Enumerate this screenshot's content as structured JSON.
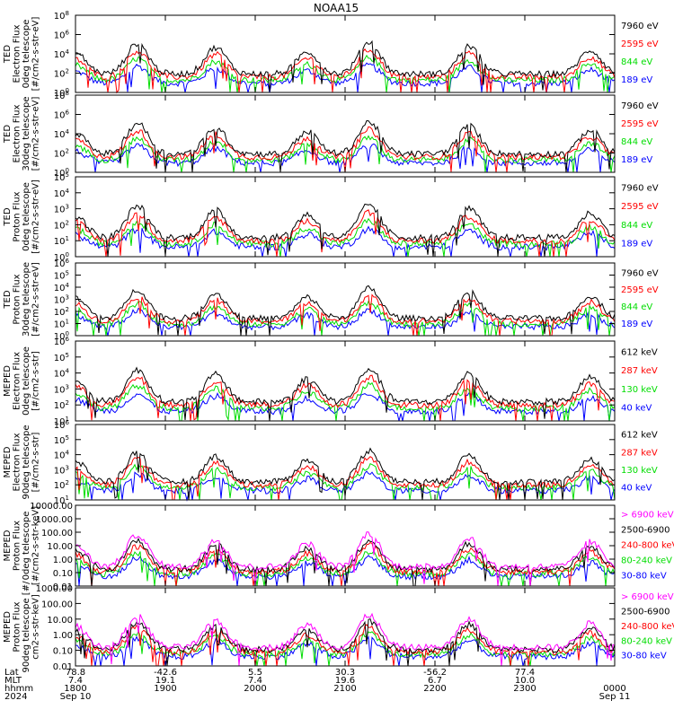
{
  "figure": {
    "title": "NOAA15"
  },
  "chart_data": [
    {
      "type": "line",
      "ylabel": [
        "TED",
        "Electron Flux",
        "0deg telescope",
        "[#/cm2-s-str-eV]"
      ],
      "yscale": "log",
      "ylim_exp": [
        0,
        8
      ],
      "yticks": [
        {
          "label": "10",
          "exp": "0",
          "e": 0
        },
        {
          "label": "10",
          "exp": "2",
          "e": 2
        },
        {
          "label": "10",
          "exp": "4",
          "e": 4
        },
        {
          "label": "10",
          "exp": "6",
          "e": 6
        },
        {
          "label": "10",
          "exp": "8",
          "e": 8
        }
      ],
      "series": [
        {
          "name": "7960 eV",
          "color": "#000000"
        },
        {
          "name": "2595 eV",
          "color": "#ff0000"
        },
        {
          "name": "844 eV",
          "color": "#00dd00"
        },
        {
          "name": "189 eV",
          "color": "#0000ff"
        }
      ]
    },
    {
      "type": "line",
      "ylabel": [
        "TED",
        "Electron Flux",
        "30deg telescope",
        "[#/cm2-s-str-eV]"
      ],
      "yscale": "log",
      "ylim_exp": [
        0,
        8
      ],
      "yticks": [
        {
          "label": "10",
          "exp": "0",
          "e": 0
        },
        {
          "label": "10",
          "exp": "2",
          "e": 2
        },
        {
          "label": "10",
          "exp": "4",
          "e": 4
        },
        {
          "label": "10",
          "exp": "6",
          "e": 6
        },
        {
          "label": "10",
          "exp": "8",
          "e": 8
        }
      ],
      "series": [
        {
          "name": "7960 eV",
          "color": "#000000"
        },
        {
          "name": "2595 eV",
          "color": "#ff0000"
        },
        {
          "name": "844 eV",
          "color": "#00dd00"
        },
        {
          "name": "189 eV",
          "color": "#0000ff"
        }
      ]
    },
    {
      "type": "line",
      "ylabel": [
        "TED",
        "Proton Flux",
        "0deg telescope",
        "[#/cm2-s-str-eV]"
      ],
      "yscale": "log",
      "ylim_exp": [
        0,
        5
      ],
      "yticks": [
        {
          "label": "10",
          "exp": "0",
          "e": 0
        },
        {
          "label": "10",
          "exp": "1",
          "e": 1
        },
        {
          "label": "10",
          "exp": "2",
          "e": 2
        },
        {
          "label": "10",
          "exp": "3",
          "e": 3
        },
        {
          "label": "10",
          "exp": "4",
          "e": 4
        },
        {
          "label": "10",
          "exp": "5",
          "e": 5
        }
      ],
      "series": [
        {
          "name": "7960 eV",
          "color": "#000000"
        },
        {
          "name": "2595 eV",
          "color": "#ff0000"
        },
        {
          "name": "844 eV",
          "color": "#00dd00"
        },
        {
          "name": "189 eV",
          "color": "#0000ff"
        }
      ]
    },
    {
      "type": "line",
      "ylabel": [
        "TED",
        "Proton Flux",
        "30deg telescope",
        "[#/cm2-s-str-eV]"
      ],
      "yscale": "log",
      "ylim_exp": [
        0,
        6
      ],
      "yticks": [
        {
          "label": "10",
          "exp": "0",
          "e": 0
        },
        {
          "label": "10",
          "exp": "1",
          "e": 1
        },
        {
          "label": "10",
          "exp": "2",
          "e": 2
        },
        {
          "label": "10",
          "exp": "3",
          "e": 3
        },
        {
          "label": "10",
          "exp": "4",
          "e": 4
        },
        {
          "label": "10",
          "exp": "5",
          "e": 5
        },
        {
          "label": "10",
          "exp": "6",
          "e": 6
        }
      ],
      "series": [
        {
          "name": "7960 eV",
          "color": "#000000"
        },
        {
          "name": "2595 eV",
          "color": "#ff0000"
        },
        {
          "name": "844 eV",
          "color": "#00dd00"
        },
        {
          "name": "189 eV",
          "color": "#0000ff"
        }
      ]
    },
    {
      "type": "line",
      "ylabel": [
        "MEPED",
        "Electron Flux",
        "0deg telescope",
        "[#/cm2-s-str]"
      ],
      "yscale": "log",
      "ylim_exp": [
        1,
        6
      ],
      "yticks": [
        {
          "label": "10",
          "exp": "1",
          "e": 1
        },
        {
          "label": "10",
          "exp": "2",
          "e": 2
        },
        {
          "label": "10",
          "exp": "3",
          "e": 3
        },
        {
          "label": "10",
          "exp": "4",
          "e": 4
        },
        {
          "label": "10",
          "exp": "5",
          "e": 5
        },
        {
          "label": "10",
          "exp": "6",
          "e": 6
        }
      ],
      "series": [
        {
          "name": "612 keV",
          "color": "#000000"
        },
        {
          "name": "287 keV",
          "color": "#ff0000"
        },
        {
          "name": "130 keV",
          "color": "#00dd00"
        },
        {
          "name": "40 keV",
          "color": "#0000ff"
        }
      ]
    },
    {
      "type": "line",
      "ylabel": [
        "MEPED",
        "Electron Flux",
        "90deg telescope",
        "[#/cm2-s-str]"
      ],
      "yscale": "log",
      "ylim_exp": [
        1,
        6
      ],
      "yticks": [
        {
          "label": "10",
          "exp": "1",
          "e": 1
        },
        {
          "label": "10",
          "exp": "2",
          "e": 2
        },
        {
          "label": "10",
          "exp": "3",
          "e": 3
        },
        {
          "label": "10",
          "exp": "4",
          "e": 4
        },
        {
          "label": "10",
          "exp": "5",
          "e": 5
        },
        {
          "label": "10",
          "exp": "6",
          "e": 6
        }
      ],
      "series": [
        {
          "name": "612 keV",
          "color": "#000000"
        },
        {
          "name": "287 keV",
          "color": "#ff0000"
        },
        {
          "name": "130 keV",
          "color": "#00dd00"
        },
        {
          "name": "40 keV",
          "color": "#0000ff"
        }
      ]
    },
    {
      "type": "line",
      "ylabel": [
        "MEPED",
        "Proton Flux",
        "0deg telescope",
        "[#/cm2-s-str-keV]"
      ],
      "yscale": "log",
      "ylim_exp": [
        -2,
        4
      ],
      "yticks": [
        {
          "label": "0.01",
          "e": -2
        },
        {
          "label": "0.10",
          "e": -1
        },
        {
          "label": "1.00",
          "e": 0
        },
        {
          "label": "10.00",
          "e": 1
        },
        {
          "label": "100.00",
          "e": 2
        },
        {
          "label": "1000.00",
          "e": 3
        },
        {
          "label": "10000.00",
          "e": 4
        }
      ],
      "series": [
        {
          "name": "> 6900 keV",
          "color": "#ff00ff"
        },
        {
          "name": "2500-6900",
          "color": "#000000"
        },
        {
          "name": "240-800 keV",
          "color": "#ff0000"
        },
        {
          "name": "80-240 keV",
          "color": "#00dd00"
        },
        {
          "name": "30-80 keV",
          "color": "#0000ff"
        }
      ]
    },
    {
      "type": "line",
      "ylabel": [
        "MEPED",
        "Proton Flux",
        "90deg telescope [#/",
        "cm2-s-str-keV]"
      ],
      "yscale": "log",
      "ylim_exp": [
        -2,
        3
      ],
      "yticks": [
        {
          "label": "0.01",
          "e": -2
        },
        {
          "label": "0.10",
          "e": -1
        },
        {
          "label": "1.00",
          "e": 0
        },
        {
          "label": "10.00",
          "e": 1
        },
        {
          "label": "100.00",
          "e": 2
        },
        {
          "label": "1000.00",
          "e": 3
        }
      ],
      "series": [
        {
          "name": "> 6900 keV",
          "color": "#ff00ff"
        },
        {
          "name": "2500-6900",
          "color": "#000000"
        },
        {
          "name": "240-800 keV",
          "color": "#ff0000"
        },
        {
          "name": "80-240 keV",
          "color": "#00dd00"
        },
        {
          "name": "30-80 keV",
          "color": "#0000ff"
        }
      ]
    }
  ],
  "x_axis": {
    "row_labels": [
      "Lat",
      "MLT",
      "hhmm",
      "2024"
    ],
    "ticks": [
      {
        "lat": "78.8",
        "mlt": "7.4",
        "hhmm": "1800",
        "date": "Sep 10"
      },
      {
        "lat": "-42.6",
        "mlt": "19.1",
        "hhmm": "1900",
        "date": ""
      },
      {
        "lat": "5.5",
        "mlt": "7.4",
        "hhmm": "2000",
        "date": ""
      },
      {
        "lat": "30.3",
        "mlt": "19.6",
        "hhmm": "2100",
        "date": ""
      },
      {
        "lat": "-56.2",
        "mlt": "6.7",
        "hhmm": "2200",
        "date": ""
      },
      {
        "lat": "77.4",
        "mlt": "10.0",
        "hhmm": "2300",
        "date": ""
      },
      {
        "lat": "",
        "mlt": "",
        "hhmm": "0000",
        "date": "Sep 11"
      }
    ]
  }
}
